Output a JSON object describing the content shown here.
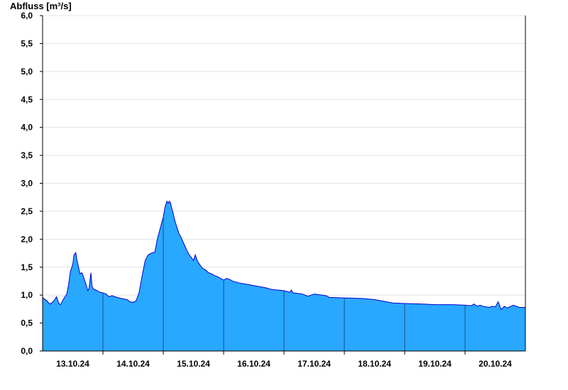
{
  "chart_data": {
    "type": "area",
    "ylabel": "Abfluss [m³/s]",
    "xlabel": "",
    "ylim": [
      0,
      6
    ],
    "yticks": [
      {
        "value": 0.0,
        "label": "0,0"
      },
      {
        "value": 0.5,
        "label": "0,5"
      },
      {
        "value": 1.0,
        "label": "1,0"
      },
      {
        "value": 1.5,
        "label": "1,5"
      },
      {
        "value": 2.0,
        "label": "2,0"
      },
      {
        "value": 2.5,
        "label": "2,5"
      },
      {
        "value": 3.0,
        "label": "3,0"
      },
      {
        "value": 3.5,
        "label": "3,5"
      },
      {
        "value": 4.0,
        "label": "4,0"
      },
      {
        "value": 4.5,
        "label": "4,5"
      },
      {
        "value": 5.0,
        "label": "5,0"
      },
      {
        "value": 5.5,
        "label": "5,5"
      },
      {
        "value": 6.0,
        "label": "6,0"
      }
    ],
    "xlim_days": [
      12.5,
      20.5
    ],
    "xticks": [
      {
        "day": 13,
        "label": "13.10.24"
      },
      {
        "day": 14,
        "label": "14.10.24"
      },
      {
        "day": 15,
        "label": "15.10.24"
      },
      {
        "day": 16,
        "label": "16.10.24"
      },
      {
        "day": 17,
        "label": "17.10.24"
      },
      {
        "day": 18,
        "label": "18.10.24"
      },
      {
        "day": 19,
        "label": "19.10.24"
      },
      {
        "day": 20,
        "label": "20.10.24"
      }
    ],
    "day_separators": [
      13.5,
      14.5,
      15.5,
      16.5,
      17.5,
      18.5,
      19.5
    ],
    "grid": true,
    "fill_color": "#29a8ff",
    "line_color": "#0000cc",
    "series": [
      {
        "x": [
          12.5,
          12.53,
          12.57,
          12.6,
          12.63,
          12.67,
          12.7,
          12.73,
          12.77,
          12.8,
          12.83,
          12.87,
          12.9,
          12.93,
          12.96,
          13.0,
          13.02,
          13.05,
          13.07,
          13.1,
          13.12,
          13.15,
          13.18,
          13.21,
          13.25,
          13.27,
          13.3,
          13.32,
          13.35,
          13.37,
          13.4,
          13.42,
          13.45,
          13.5,
          13.55,
          13.6,
          13.65,
          13.7,
          13.8,
          13.9,
          13.95,
          14.0,
          14.05,
          14.1,
          14.15,
          14.2,
          14.25,
          14.3,
          14.33,
          14.36,
          14.4,
          14.45,
          14.5,
          14.53,
          14.56,
          14.58,
          14.6,
          14.62,
          14.64,
          14.66,
          14.68,
          14.7,
          14.73,
          14.76,
          14.8,
          14.84,
          14.87,
          14.9,
          14.93,
          14.96,
          15.0,
          15.03,
          15.06,
          15.1,
          15.15,
          15.2,
          15.25,
          15.3,
          15.35,
          15.4,
          15.5,
          15.55,
          15.6,
          15.65,
          15.75,
          15.85,
          16.0,
          16.2,
          16.3,
          16.5,
          16.6,
          16.62,
          16.65,
          16.8,
          16.85,
          16.9,
          17.0,
          17.2,
          17.25,
          17.5,
          17.8,
          17.9,
          18.0,
          18.1,
          18.2,
          18.3,
          18.5,
          18.8,
          19.0,
          19.3,
          19.5,
          19.6,
          19.65,
          19.7,
          19.75,
          19.8,
          19.85,
          19.9,
          19.95,
          20.0,
          20.05,
          20.1,
          20.15,
          20.2,
          20.3,
          20.4,
          20.5
        ],
        "y": [
          0.96,
          0.93,
          0.9,
          0.86,
          0.84,
          0.88,
          0.92,
          0.97,
          0.85,
          0.83,
          0.9,
          0.97,
          1.02,
          1.18,
          1.42,
          1.55,
          1.72,
          1.76,
          1.62,
          1.48,
          1.38,
          1.4,
          1.32,
          1.22,
          1.08,
          1.12,
          1.4,
          1.15,
          1.1,
          1.1,
          1.08,
          1.07,
          1.05,
          1.04,
          1.02,
          0.97,
          0.99,
          0.97,
          0.94,
          0.92,
          0.88,
          0.87,
          0.9,
          1.05,
          1.35,
          1.62,
          1.72,
          1.75,
          1.76,
          1.77,
          2.0,
          2.2,
          2.4,
          2.58,
          2.68,
          2.64,
          2.68,
          2.65,
          2.55,
          2.48,
          2.38,
          2.3,
          2.2,
          2.1,
          2.02,
          1.92,
          1.85,
          1.78,
          1.72,
          1.68,
          1.62,
          1.72,
          1.62,
          1.55,
          1.48,
          1.45,
          1.4,
          1.38,
          1.35,
          1.33,
          1.27,
          1.3,
          1.28,
          1.25,
          1.22,
          1.2,
          1.17,
          1.13,
          1.1,
          1.08,
          1.05,
          1.09,
          1.04,
          1.02,
          1.0,
          0.98,
          1.02,
          0.99,
          0.96,
          0.95,
          0.94,
          0.93,
          0.92,
          0.9,
          0.88,
          0.86,
          0.85,
          0.84,
          0.83,
          0.83,
          0.82,
          0.81,
          0.84,
          0.8,
          0.82,
          0.8,
          0.79,
          0.78,
          0.8,
          0.79,
          0.88,
          0.74,
          0.8,
          0.77,
          0.82,
          0.78,
          0.78
        ]
      }
    ]
  }
}
